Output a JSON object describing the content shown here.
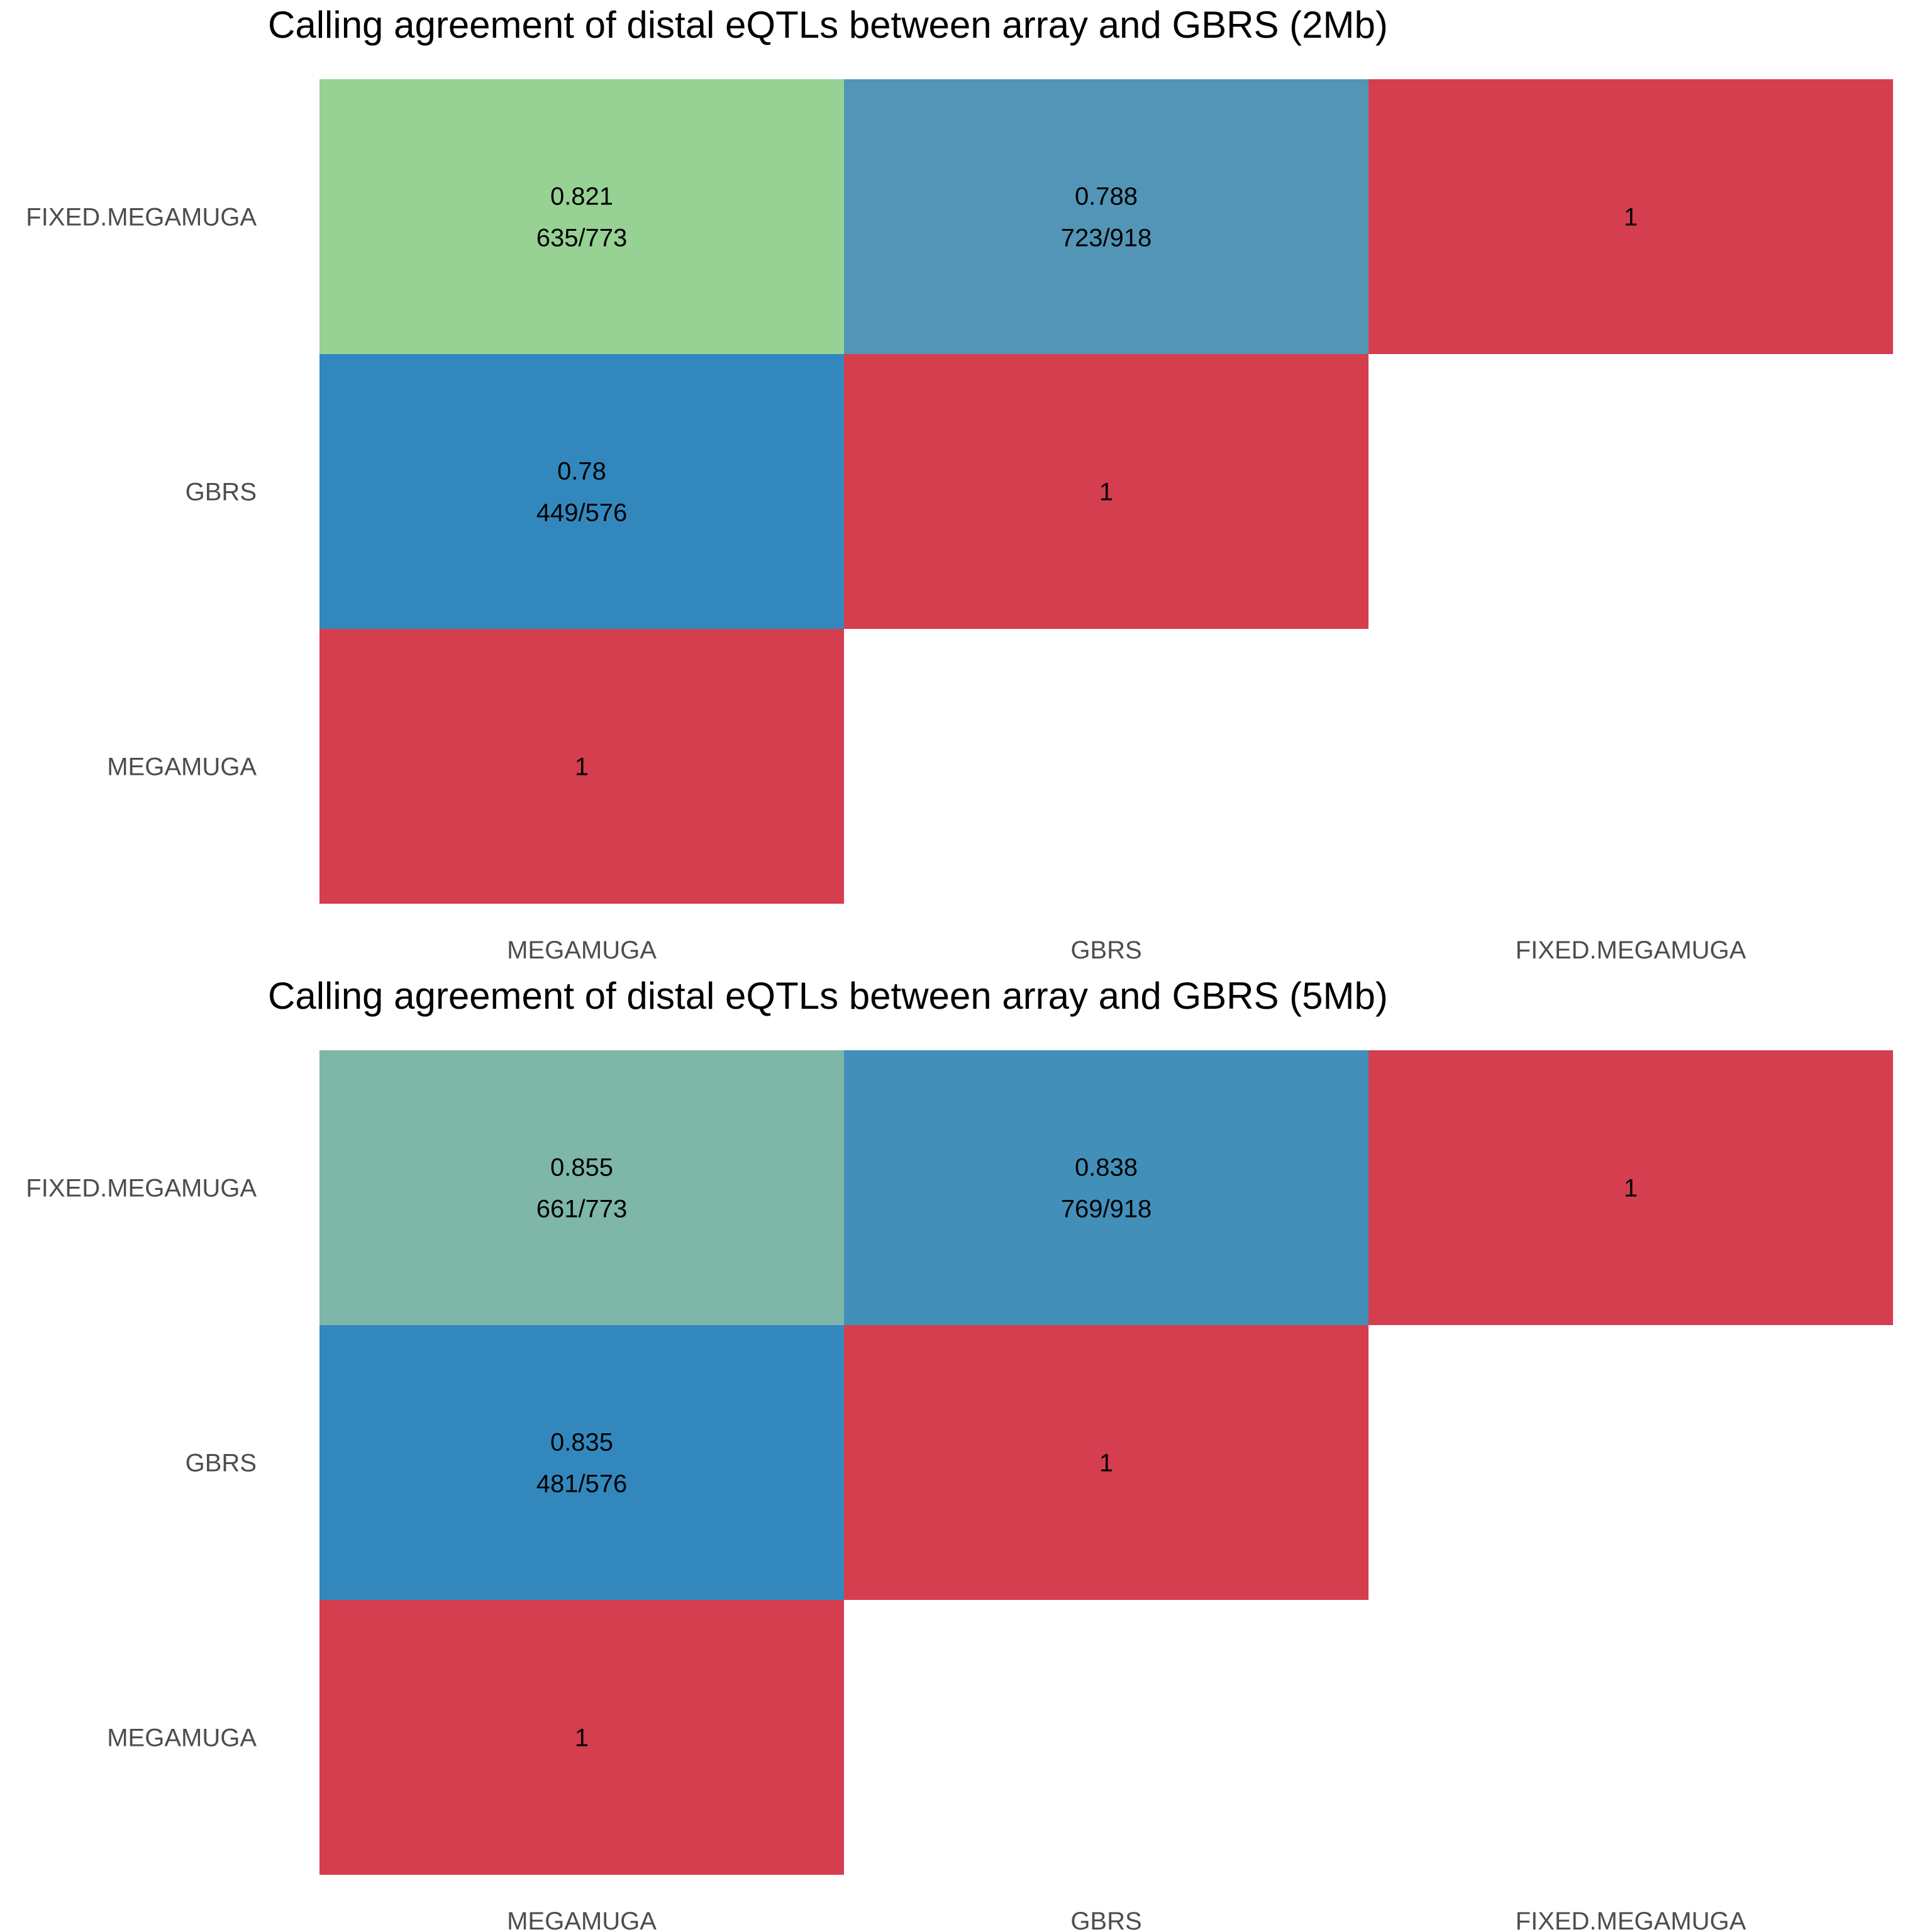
{
  "chart_data": [
    {
      "type": "heatmap",
      "title": "Calling agreement of distal eQTLs between array and GBRS (2Mb)",
      "x_categories": [
        "MEGAMUGA",
        "GBRS",
        "FIXED.MEGAMUGA"
      ],
      "y_categories": [
        "FIXED.MEGAMUGA",
        "GBRS",
        "MEGAMUGA"
      ],
      "legend": "none",
      "grid": false,
      "cells": [
        {
          "x": "MEGAMUGA",
          "y": "FIXED.MEGAMUGA",
          "value": 0.821,
          "value_label": "0.821",
          "count_label": "635/773",
          "color": "#97d194"
        },
        {
          "x": "GBRS",
          "y": "FIXED.MEGAMUGA",
          "value": 0.788,
          "value_label": "0.788",
          "count_label": "723/918",
          "color": "#5295b7"
        },
        {
          "x": "FIXED.MEGAMUGA",
          "y": "FIXED.MEGAMUGA",
          "value": 1,
          "value_label": "1",
          "count_label": "",
          "color": "#d53e4f"
        },
        {
          "x": "MEGAMUGA",
          "y": "GBRS",
          "value": 0.78,
          "value_label": "0.78",
          "count_label": "449/576",
          "color": "#3288bd"
        },
        {
          "x": "GBRS",
          "y": "GBRS",
          "value": 1,
          "value_label": "1",
          "count_label": "",
          "color": "#d53e4f"
        },
        {
          "x": "MEGAMUGA",
          "y": "MEGAMUGA",
          "value": 1,
          "value_label": "1",
          "count_label": "",
          "color": "#d53e4f"
        }
      ]
    },
    {
      "type": "heatmap",
      "title": "Calling agreement of distal eQTLs between array and GBRS (5Mb)",
      "x_categories": [
        "MEGAMUGA",
        "GBRS",
        "FIXED.MEGAMUGA"
      ],
      "y_categories": [
        "FIXED.MEGAMUGA",
        "GBRS",
        "MEGAMUGA"
      ],
      "legend": "none",
      "grid": false,
      "cells": [
        {
          "x": "MEGAMUGA",
          "y": "FIXED.MEGAMUGA",
          "value": 0.855,
          "value_label": "0.855",
          "count_label": "661/773",
          "color": "#7eb6a8"
        },
        {
          "x": "GBRS",
          "y": "FIXED.MEGAMUGA",
          "value": 0.838,
          "value_label": "0.838",
          "count_label": "769/918",
          "color": "#428fba"
        },
        {
          "x": "FIXED.MEGAMUGA",
          "y": "FIXED.MEGAMUGA",
          "value": 1,
          "value_label": "1",
          "count_label": "",
          "color": "#d53e4f"
        },
        {
          "x": "MEGAMUGA",
          "y": "GBRS",
          "value": 0.835,
          "value_label": "0.835",
          "count_label": "481/576",
          "color": "#3288bd"
        },
        {
          "x": "GBRS",
          "y": "GBRS",
          "value": 1,
          "value_label": "1",
          "count_label": "",
          "color": "#d53e4f"
        },
        {
          "x": "MEGAMUGA",
          "y": "MEGAMUGA",
          "value": 1,
          "value_label": "1",
          "count_label": "",
          "color": "#d53e4f"
        }
      ]
    }
  ]
}
